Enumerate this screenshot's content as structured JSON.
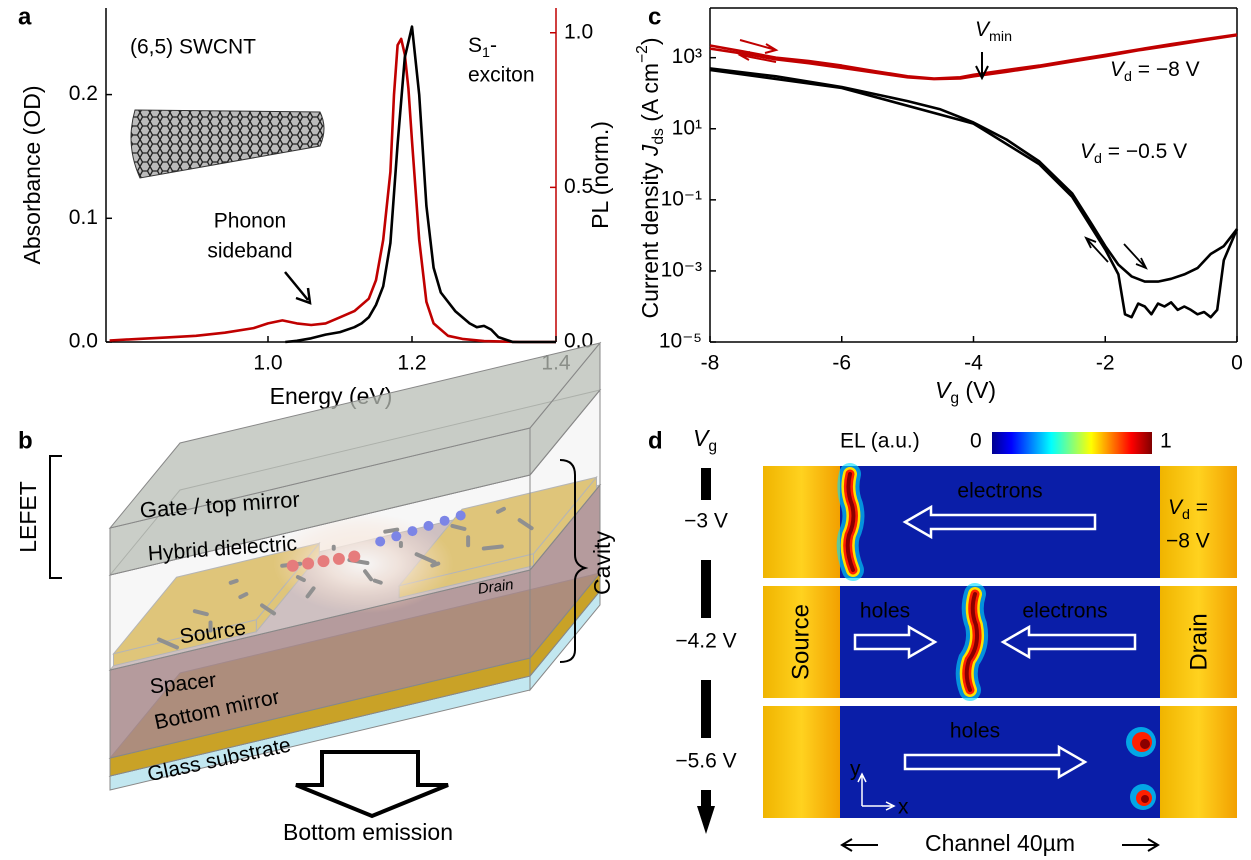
{
  "panel_labels": [
    "a",
    "b",
    "c",
    "d"
  ],
  "chart_data": [
    {
      "type": "line",
      "xlabel": "Energy (eV)",
      "ylabel": "Absorbance (OD)",
      "y2label": "PL (norm.)",
      "annotations": {
        "tube": "(6,5) SWCNT",
        "s1": [
          "S",
          "1",
          "-"
        ],
        "s1_line2": "exciton",
        "phonon": [
          "Phonon",
          "sideband"
        ]
      },
      "xlim": [
        0.775,
        1.4
      ],
      "xticks": [
        {
          "value": 1,
          "label": "1.0"
        },
        1.2,
        1.4
      ],
      "ylim": [
        0,
        0.27
      ],
      "yticks": [
        {
          "value": 0,
          "label": "0.0"
        },
        0.1,
        0.2
      ],
      "y2lim": [
        0,
        1.08
      ],
      "y2ticks": [
        {
          "value": 0,
          "label": "0.0"
        },
        0.5,
        {
          "value": 1,
          "label": "1.0"
        }
      ],
      "series": [
        {
          "color": "#c00000",
          "axis": "y2",
          "x": [
            0.78,
            0.82,
            0.86,
            0.9,
            0.94,
            0.98,
            1.0,
            1.02,
            1.04,
            1.06,
            1.08,
            1.1,
            1.12,
            1.14,
            1.15,
            1.16,
            1.17,
            1.175,
            1.18,
            1.185,
            1.19,
            1.195,
            1.2,
            1.21,
            1.22,
            1.23,
            1.25,
            1.27,
            1.3,
            1.35,
            1.4
          ],
          "values": [
            0.005,
            0.01,
            0.015,
            0.02,
            0.03,
            0.045,
            0.06,
            0.07,
            0.06,
            0.055,
            0.06,
            0.08,
            0.1,
            0.14,
            0.2,
            0.33,
            0.55,
            0.8,
            0.96,
            0.98,
            0.93,
            0.82,
            0.65,
            0.33,
            0.13,
            0.06,
            0.02,
            0.01,
            0.003,
            0,
            0
          ]
        },
        {
          "color": "#000000",
          "x": [
            1.024,
            1.04,
            1.06,
            1.08,
            1.1,
            1.12,
            1.13,
            1.14,
            1.15,
            1.16,
            1.17,
            1.18,
            1.19,
            1.2,
            1.21,
            1.22,
            1.23,
            1.24,
            1.26,
            1.28,
            1.29,
            1.3,
            1.31,
            1.32,
            1.34,
            1.37,
            1.4
          ],
          "values": [
            0,
            0.001,
            0.003,
            0.006,
            0.008,
            0.012,
            0.015,
            0.02,
            0.03,
            0.045,
            0.08,
            0.16,
            0.23,
            0.255,
            0.2,
            0.11,
            0.06,
            0.04,
            0.025,
            0.015,
            0.012,
            0.013,
            0.01,
            0.004,
            0,
            0,
            0
          ]
        }
      ]
    },
    {
      "type": "line",
      "log_y": true,
      "xlabel": {
        "var": "V",
        "sub": "g",
        "unit": " (V)"
      },
      "ylabel": {
        "text": "Current density ",
        "var": "J",
        "sub": "ds",
        "unit": " (A cm",
        "sup": "−2",
        "close": ")"
      },
      "annotations": {
        "vmin": [
          "V",
          "min"
        ],
        "red": [
          "V",
          "d",
          " = −8 V"
        ],
        "black": [
          "V",
          "d",
          " = −0.5 V"
        ]
      },
      "xlim": [
        -8,
        0
      ],
      "xticks": [
        -8,
        -6,
        -4,
        -2,
        0
      ],
      "ylim": [
        1e-05,
        25000
      ],
      "yticks": [
        {
          "value": 1e-05,
          "label": "10⁻⁵"
        },
        {
          "value": 0.001,
          "label": "10⁻³"
        },
        {
          "value": 0.1,
          "label": "10⁻¹"
        },
        {
          "value": 10,
          "label": "10¹"
        },
        {
          "value": 1000,
          "label": "10³"
        }
      ],
      "series": [
        {
          "color": "#c00000",
          "x": [
            -8,
            -7.5,
            -7,
            -6.5,
            -6,
            -5.5,
            -5,
            -4.6,
            -4.2,
            -4,
            -3.5,
            -3,
            -2.5,
            -2,
            -1.5,
            -1,
            -0.5,
            0
          ],
          "values": [
            2200,
            1500,
            1000,
            800,
            600,
            420,
            300,
            260,
            280,
            330,
            450,
            600,
            850,
            1200,
            1700,
            2400,
            3300,
            4500
          ]
        },
        {
          "color": "#c00000",
          "x": [
            -8,
            -7.5,
            -7,
            -6.5,
            -6,
            -5.5,
            -5,
            -4.6,
            -4.2,
            -4,
            -3.5,
            -3,
            -2.5,
            -2,
            -1.5,
            -1,
            -0.5,
            0
          ],
          "values": [
            1800,
            1300,
            900,
            700,
            520,
            380,
            280,
            250,
            260,
            300,
            400,
            550,
            780,
            1100,
            1600,
            2200,
            3100,
            4300
          ]
        },
        {
          "color": "#000000",
          "x": [
            -8,
            -7,
            -6,
            -5,
            -4.5,
            -4,
            -3.5,
            -3,
            -2.5,
            -2.2,
            -2,
            -1.8,
            -1.6,
            -1.4,
            -1.2,
            -1,
            -0.8,
            -0.6,
            -0.4,
            -0.2,
            0
          ],
          "values": [
            500,
            300,
            150,
            60,
            35,
            15,
            5,
            1.2,
            0.15,
            0.02,
            0.005,
            0.0015,
            0.0007,
            0.0005,
            0.0005,
            0.0006,
            0.0008,
            0.0012,
            0.003,
            0.005,
            0.015
          ]
        },
        {
          "color": "#000000",
          "x": [
            -8,
            -6,
            -4,
            -3,
            -2.5,
            -2,
            -1.8,
            -1.7,
            -1.6,
            -1.5,
            -1.4,
            -1.3,
            -1.2,
            -1.1,
            -1,
            -0.9,
            -0.8,
            -0.7,
            -0.6,
            -0.5,
            -0.4,
            -0.3,
            -0.2,
            0
          ],
          "values": [
            450,
            140,
            14,
            1,
            0.12,
            0.004,
            0.0008,
            6e-05,
            5e-05,
            0.00012,
            0.0001,
            6e-05,
            0.00012,
            0.0001,
            0.00013,
            8e-05,
            0.0001,
            8e-05,
            6e-05,
            7e-05,
            5e-05,
            8e-05,
            0.002,
            0.015
          ]
        }
      ]
    }
  ],
  "panel_b": {
    "lefet": "LEFET",
    "cavity": "Cavity",
    "gate": "Gate / top mirror",
    "dielectric": "Hybrid dielectric",
    "drain": "Drain",
    "source": "Source",
    "spacer": "Spacer",
    "bottom_mirror": "Bottom mirror",
    "glass": "Glass substrate",
    "emission": "Bottom emission"
  },
  "panel_d": {
    "vg": [
      "V",
      "g"
    ],
    "el": "EL (a.u.)",
    "cbar": [
      "0",
      "1"
    ],
    "rows": [
      {
        "vg": "−3 V",
        "arrows": [
          "electrons"
        ]
      },
      {
        "vg": "−4.2 V",
        "arrows": [
          "holes",
          "electrons"
        ]
      },
      {
        "vg": "−5.6 V",
        "arrows": [
          "holes"
        ]
      }
    ],
    "vd": [
      "V",
      "d",
      " =",
      "−8 V"
    ],
    "source": "Source",
    "drain": "Drain",
    "axes": [
      "y",
      "x"
    ],
    "channel": "Channel 40µm"
  }
}
